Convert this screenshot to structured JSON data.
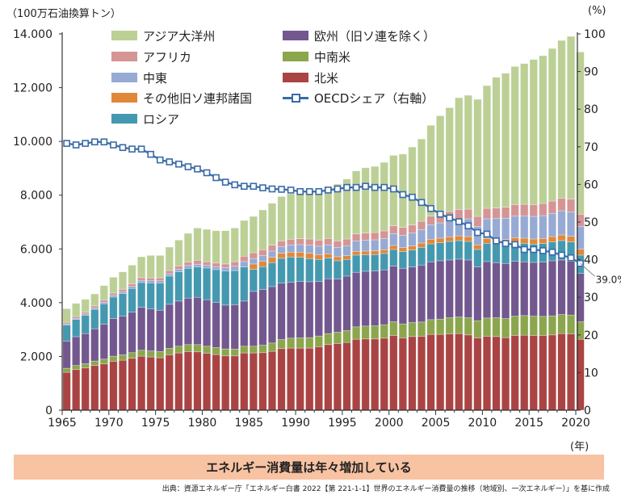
{
  "chart_data": {
    "type": "bar",
    "stacked": true,
    "left_axis_unit": "（100万石油換算トン）",
    "right_axis_unit": "(%)",
    "x_unit": "(年)",
    "ylim": [
      0,
      14000
    ],
    "y2lim": [
      0,
      100
    ],
    "y_ticks": [
      "0",
      "2.000",
      "4.000",
      "6.000",
      "8.000",
      "10.000",
      "12.000",
      "14.000"
    ],
    "y2_ticks": [
      "0",
      "10",
      "20",
      "30",
      "40",
      "50",
      "60",
      "70",
      "80",
      "90",
      "100"
    ],
    "x_ticks": [
      "1965",
      "1970",
      "1975",
      "1980",
      "1985",
      "1990",
      "1995",
      "2000",
      "2005",
      "2010",
      "2015",
      "2020"
    ],
    "legend_placement": "top-left inside",
    "grid": false,
    "categories": [
      1965,
      1966,
      1967,
      1968,
      1969,
      1970,
      1971,
      1972,
      1973,
      1974,
      1975,
      1976,
      1977,
      1978,
      1979,
      1980,
      1981,
      1982,
      1983,
      1984,
      1985,
      1986,
      1987,
      1988,
      1989,
      1990,
      1991,
      1992,
      1993,
      1994,
      1995,
      1996,
      1997,
      1998,
      1999,
      2000,
      2001,
      2002,
      2003,
      2004,
      2005,
      2006,
      2007,
      2008,
      2009,
      2010,
      2011,
      2012,
      2013,
      2014,
      2015,
      2016,
      2017,
      2018,
      2019,
      2020
    ],
    "series": [
      {
        "name": "北米",
        "color": "#aa4444",
        "values": [
          1410,
          1510,
          1570,
          1660,
          1720,
          1820,
          1860,
          1930,
          2010,
          1980,
          1950,
          2060,
          2130,
          2180,
          2170,
          2120,
          2070,
          2020,
          2020,
          2130,
          2130,
          2140,
          2190,
          2290,
          2310,
          2310,
          2310,
          2360,
          2440,
          2480,
          2520,
          2640,
          2650,
          2650,
          2680,
          2780,
          2690,
          2740,
          2750,
          2820,
          2820,
          2840,
          2850,
          2800,
          2690,
          2750,
          2740,
          2700,
          2780,
          2790,
          2780,
          2780,
          2800,
          2850,
          2840,
          2640
        ]
      },
      {
        "name": "中南米",
        "color": "#8ba64c",
        "values": [
          150,
          155,
          160,
          170,
          180,
          190,
          200,
          210,
          220,
          225,
          230,
          240,
          250,
          260,
          270,
          260,
          260,
          260,
          255,
          250,
          250,
          280,
          310,
          340,
          370,
          380,
          390,
          400,
          410,
          420,
          440,
          460,
          480,
          490,
          500,
          510,
          520,
          520,
          530,
          550,
          570,
          600,
          620,
          640,
          640,
          680,
          700,
          710,
          720,
          730,
          720,
          710,
          710,
          710,
          700,
          650
        ]
      },
      {
        "name": "欧州（旧ソ連を除く）",
        "color": "#72588f",
        "values": [
          1010,
          1070,
          1120,
          1200,
          1300,
          1400,
          1440,
          1510,
          1600,
          1570,
          1540,
          1640,
          1680,
          1730,
          1760,
          1730,
          1680,
          1630,
          1650,
          1680,
          2040,
          2070,
          2100,
          2100,
          2080,
          2100,
          2080,
          2030,
          2040,
          1980,
          2030,
          2030,
          2040,
          2040,
          2040,
          2070,
          2070,
          2070,
          2120,
          2150,
          2170,
          2150,
          2150,
          2150,
          2000,
          2100,
          2050,
          2050,
          2040,
          2000,
          2000,
          2020,
          2050,
          2030,
          2000,
          1800
        ]
      },
      {
        "name": "ロシア",
        "color": "#4499b0",
        "values": [
          600,
          640,
          680,
          720,
          760,
          800,
          840,
          880,
          920,
          960,
          1010,
          1050,
          1090,
          1110,
          1130,
          1180,
          1220,
          1270,
          1270,
          1270,
          820,
          850,
          890,
          920,
          940,
          900,
          860,
          820,
          770,
          680,
          620,
          640,
          610,
          610,
          610,
          620,
          620,
          630,
          660,
          670,
          670,
          690,
          690,
          690,
          650,
          680,
          700,
          700,
          690,
          690,
          680,
          690,
          700,
          720,
          720,
          680
        ]
      },
      {
        "name": "その他旧ソ連邦諸国",
        "color": "#e0883a",
        "values": [
          0,
          0,
          0,
          0,
          0,
          0,
          0,
          0,
          0,
          0,
          0,
          0,
          0,
          0,
          0,
          0,
          0,
          0,
          0,
          0,
          200,
          200,
          200,
          190,
          180,
          190,
          200,
          180,
          160,
          150,
          140,
          140,
          140,
          140,
          140,
          150,
          150,
          150,
          160,
          170,
          170,
          170,
          175,
          180,
          170,
          180,
          190,
          190,
          190,
          190,
          190,
          190,
          200,
          210,
          210,
          220
        ]
      },
      {
        "name": "中東",
        "color": "#96aad4",
        "values": [
          40,
          45,
          50,
          55,
          60,
          65,
          70,
          75,
          80,
          80,
          85,
          90,
          95,
          100,
          100,
          100,
          110,
          120,
          160,
          200,
          200,
          210,
          230,
          250,
          270,
          280,
          300,
          310,
          330,
          350,
          370,
          390,
          400,
          410,
          420,
          440,
          460,
          480,
          500,
          540,
          570,
          600,
          630,
          660,
          690,
          730,
          750,
          790,
          810,
          830,
          840,
          850,
          860,
          900,
          900,
          850
        ]
      },
      {
        "name": "アフリカ",
        "color": "#d59595",
        "values": [
          60,
          65,
          70,
          75,
          80,
          85,
          90,
          95,
          100,
          105,
          110,
          115,
          120,
          130,
          150,
          130,
          135,
          140,
          170,
          200,
          220,
          220,
          220,
          210,
          210,
          220,
          230,
          230,
          240,
          240,
          250,
          260,
          270,
          270,
          280,
          290,
          290,
          300,
          310,
          320,
          330,
          340,
          350,
          360,
          370,
          390,
          390,
          410,
          420,
          430,
          440,
          450,
          460,
          470,
          480,
          450
        ]
      },
      {
        "name": "アジア大洋州",
        "color": "#bcd096",
        "values": [
          505,
          490,
          475,
          446,
          536,
          586,
          647,
          697,
          778,
          838,
          833,
          873,
          963,
          1069,
          1199,
          1209,
          1204,
          1239,
          1254,
          1329,
          1349,
          1480,
          1560,
          1650,
          1690,
          1720,
          1780,
          1820,
          1930,
          2110,
          2230,
          2340,
          2430,
          2460,
          2550,
          2620,
          2730,
          2900,
          3060,
          3380,
          3655,
          3866,
          4161,
          4236,
          4356,
          4566,
          4867,
          4987,
          5138,
          5237,
          5397,
          5498,
          5678,
          5868,
          6059,
          6039
        ]
      }
    ],
    "line_series": {
      "name": "OECDシェア（右軸）",
      "axis": "right",
      "color": "#3a6aa8",
      "values": [
        70.9,
        70.5,
        70.9,
        71.3,
        71.3,
        70.5,
        69.8,
        69.4,
        69.4,
        68.0,
        66.5,
        66.0,
        65.4,
        64.7,
        64.1,
        63.1,
        61.8,
        60.6,
        59.9,
        59.5,
        59.5,
        59.1,
        58.8,
        58.7,
        58.5,
        58.1,
        58.1,
        58.1,
        58.5,
        58.8,
        59.2,
        59.2,
        59.5,
        59.2,
        59.2,
        58.8,
        57.3,
        56.6,
        55.2,
        53.6,
        52.1,
        51.1,
        50.1,
        49.0,
        47.2,
        46.8,
        45.0,
        44.3,
        44.0,
        42.7,
        42.7,
        42.4,
        42.0,
        41.2,
        40.5,
        39.0
      ],
      "end_label": "39.0%"
    }
  },
  "legend": {
    "col1": [
      "アジア大洋州",
      "アフリカ",
      "中東",
      "その他旧ソ連邦諸国",
      "ロシア"
    ],
    "col2": [
      "欧州（旧ソ連を除く）",
      "中南米",
      "北米",
      "OECDシェア（右軸）"
    ]
  },
  "banner": "エネルギー消費量は年々増加している",
  "source": "出典：資源エネルギー庁「エネルギー白書 2022【第 221-1-1】世界のエネルギー消費量の推移（地域別、一次エネルギー）」を基に作成"
}
